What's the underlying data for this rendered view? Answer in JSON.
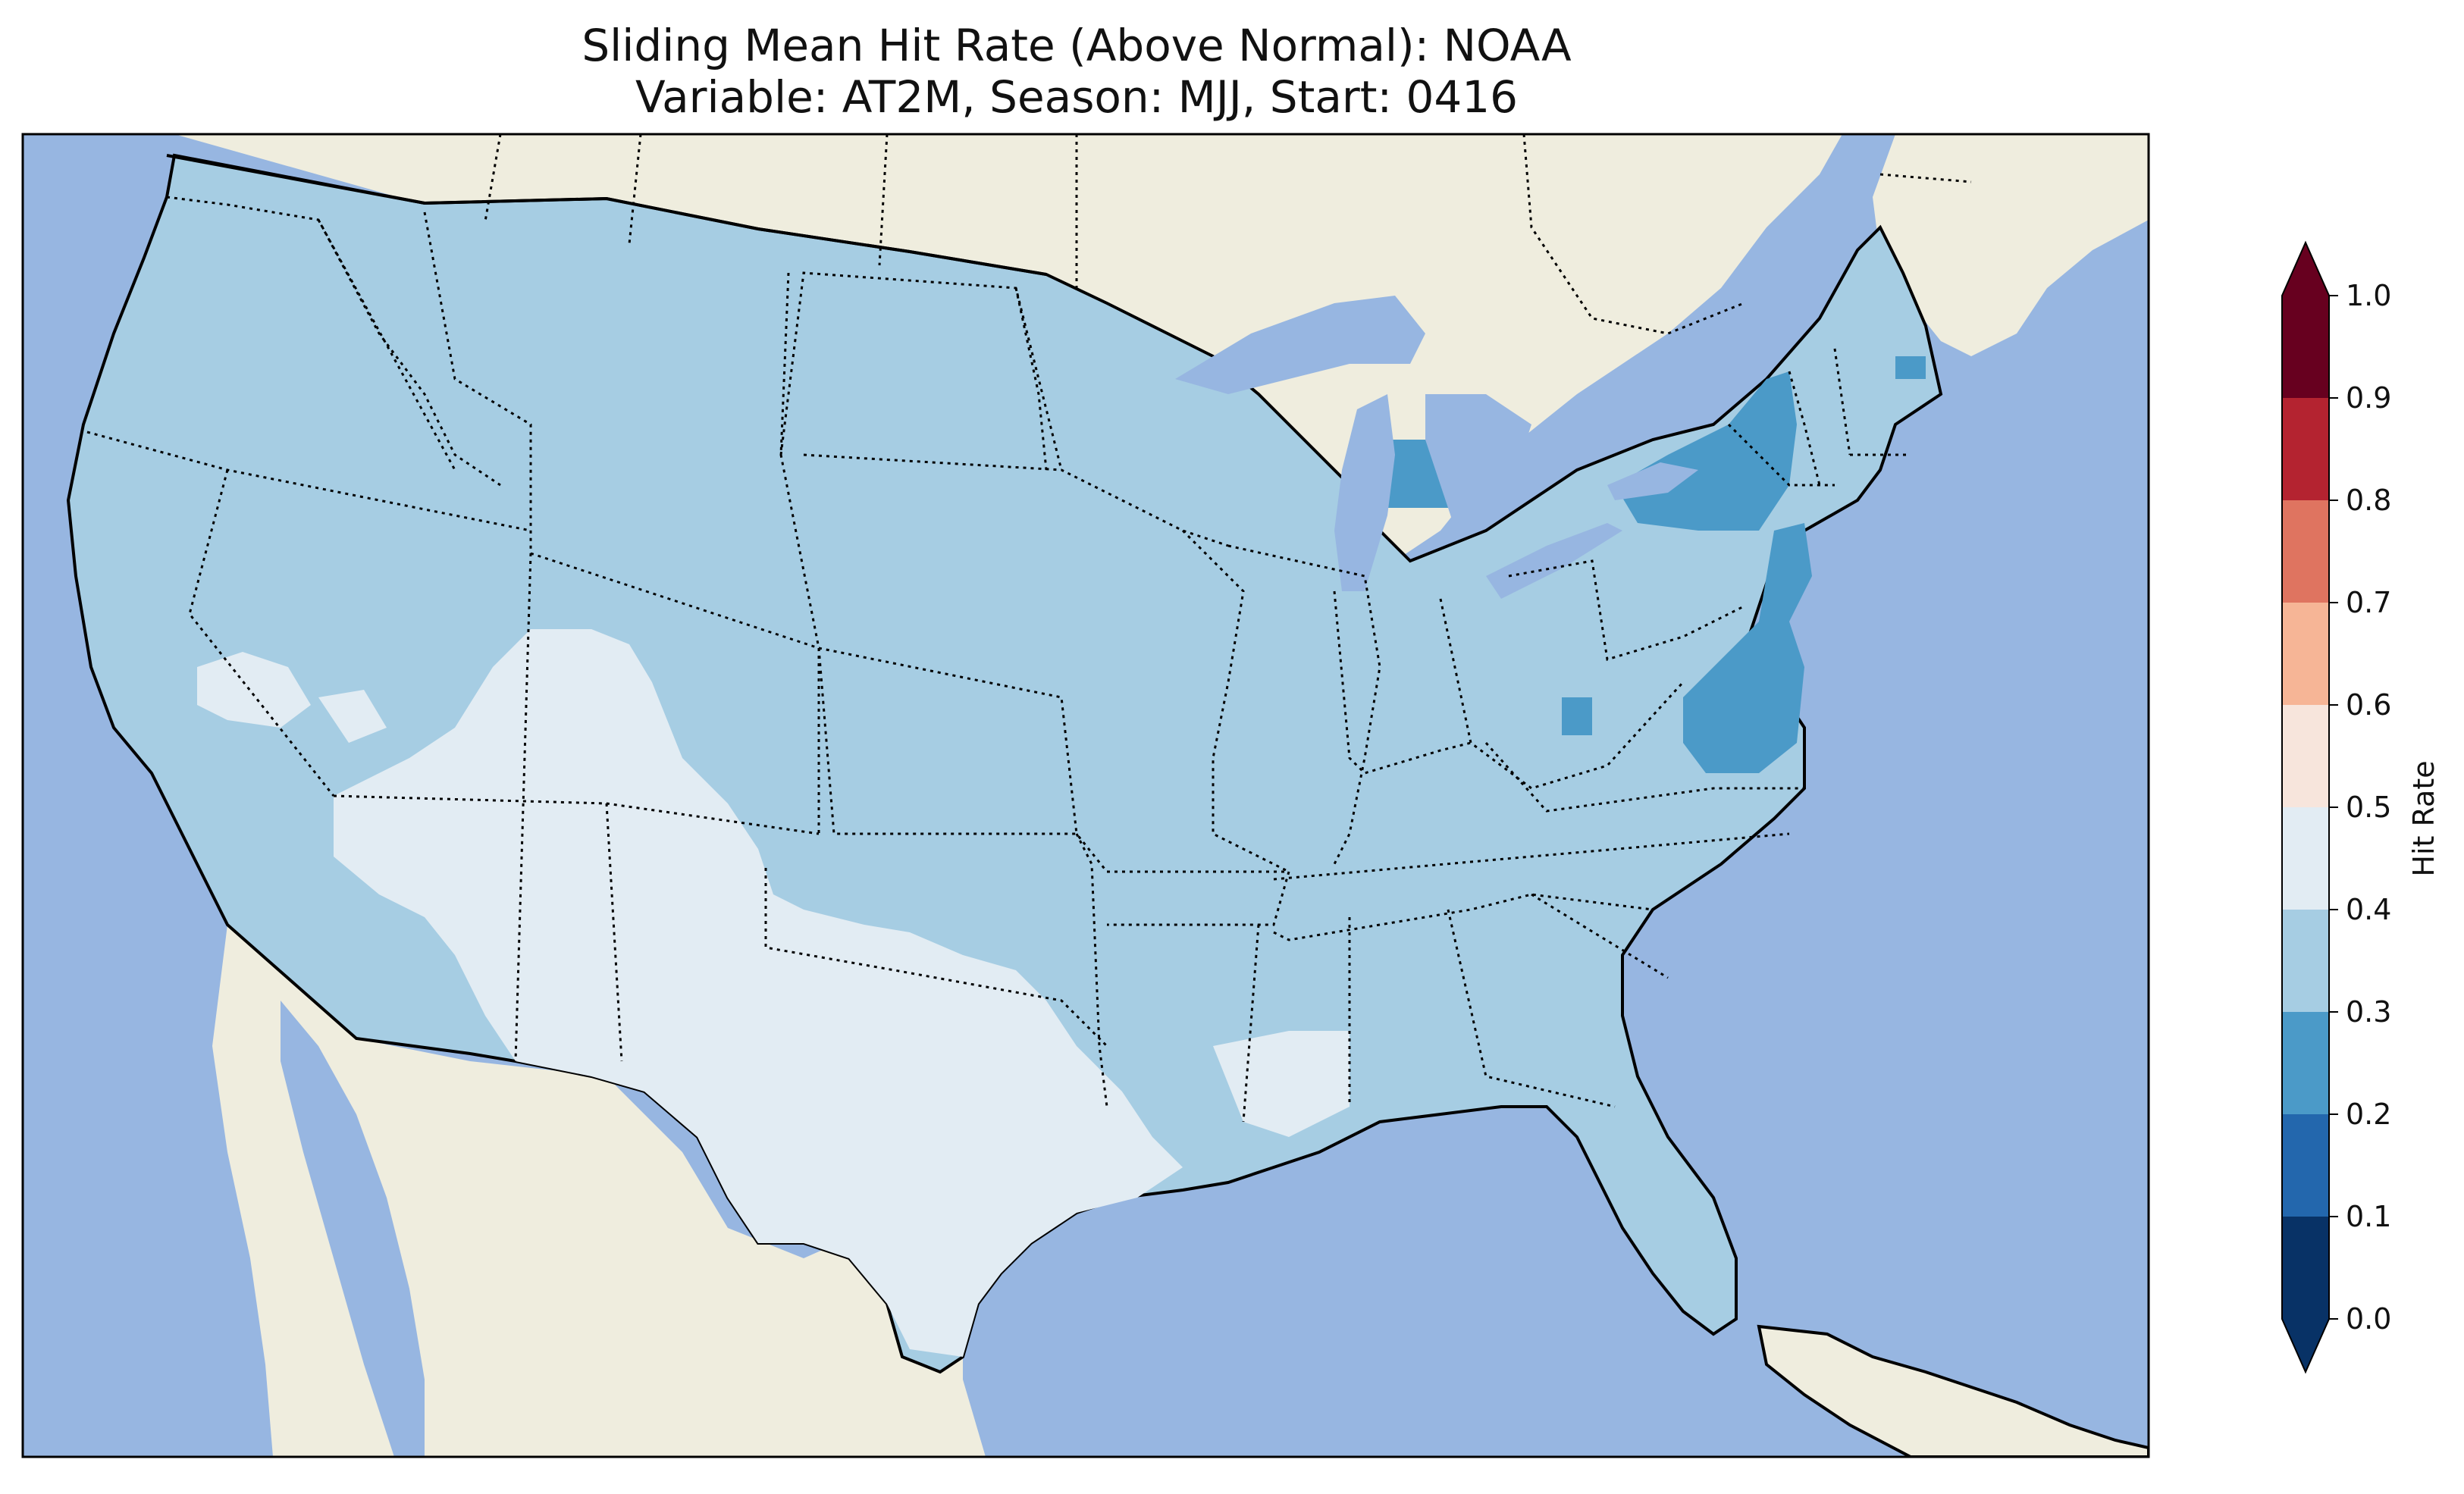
{
  "title": {
    "line1": "Sliding Mean Hit Rate (Above Normal): NOAA",
    "line2": "Variable: AT2M, Season: MJJ, Start: 0416"
  },
  "map": {
    "extent": "Contiguous United States",
    "ocean_color": "#97b6e1",
    "land_color": "#efedde",
    "lake_color": "#97b6e1",
    "regions": [
      {
        "name": "Most of the contiguous US",
        "hit_rate_range": "0.3-0.4",
        "color": "#a6cde3"
      },
      {
        "name": "Southwest (Nevada, Utah, Arizona, New Mexico, Texas)",
        "hit_rate_range": "0.4-0.5",
        "color": "#e2ecf3"
      },
      {
        "name": "Mid-Atlantic (Virginia, Maryland, New Jersey), New York, Michigan",
        "hit_rate_range": "0.2-0.3",
        "color": "#4b9ac8"
      }
    ]
  },
  "colorbar": {
    "label": "Hit Rate",
    "ticks": [
      "0.0",
      "0.1",
      "0.2",
      "0.3",
      "0.4",
      "0.5",
      "0.6",
      "0.7",
      "0.8",
      "0.9",
      "1.0"
    ],
    "colors": [
      "#083266",
      "#2367ad",
      "#4b9ac8",
      "#a6cde3",
      "#e2ecf3",
      "#f7e5dc",
      "#f6b596",
      "#df7460",
      "#b42330",
      "#67001f"
    ],
    "extend": "both"
  }
}
